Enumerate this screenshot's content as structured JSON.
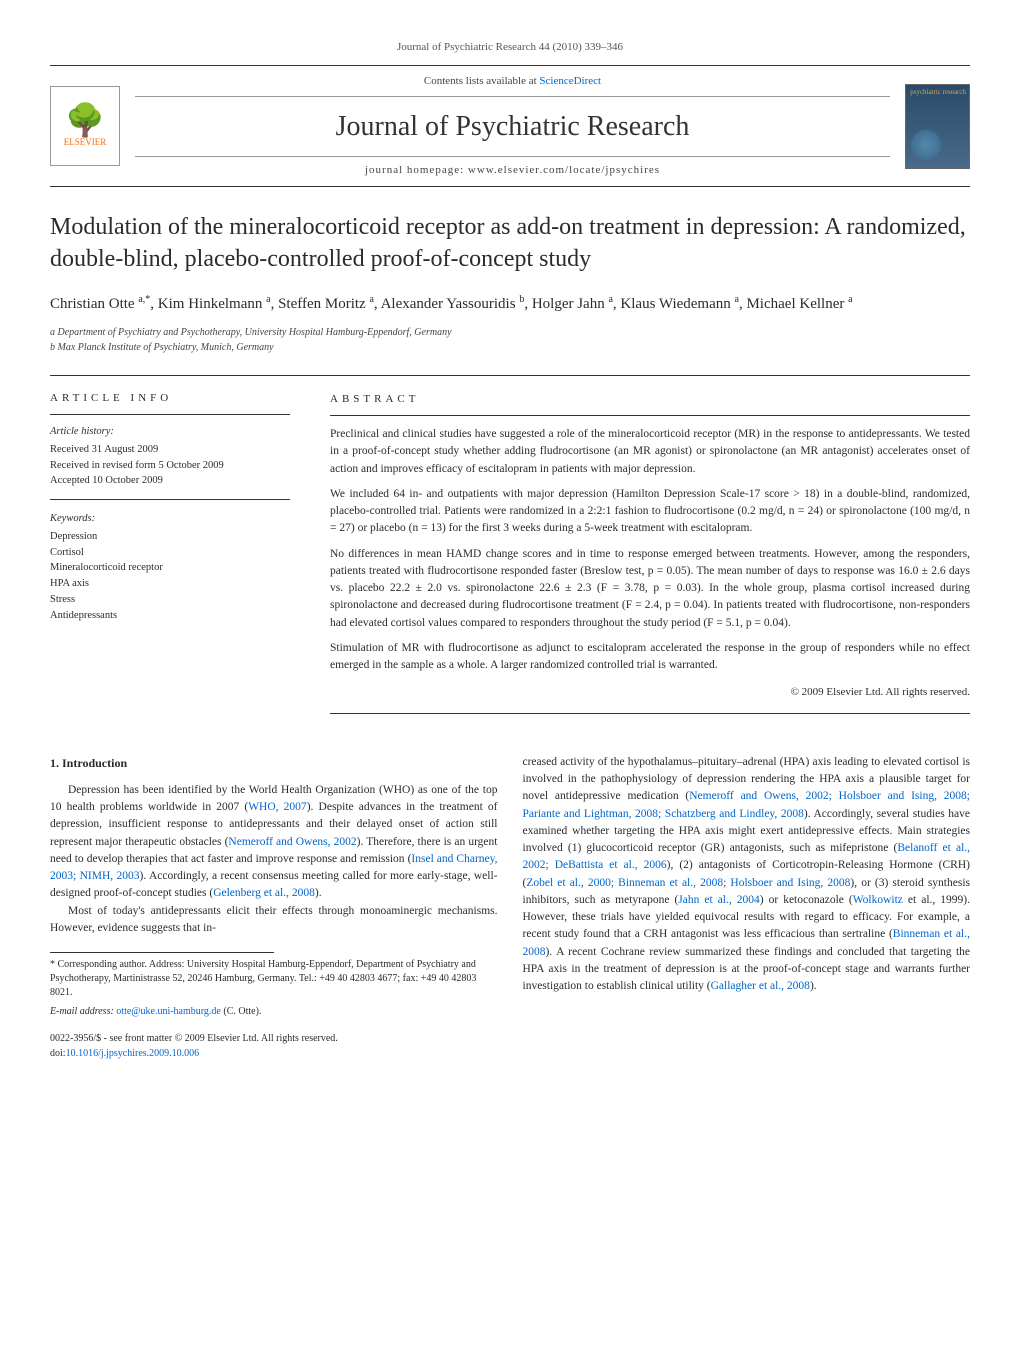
{
  "header": {
    "citation": "Journal of Psychiatric Research 44 (2010) 339–346",
    "sciencedirect_prefix": "Contents lists available at ",
    "sciencedirect_link": "ScienceDirect",
    "journal_name": "Journal of Psychiatric Research",
    "homepage_prefix": "journal homepage: ",
    "homepage_url": "www.elsevier.com/locate/jpsychires",
    "elsevier_label": "ELSEVIER",
    "cover_text": "psychiatric research"
  },
  "title": "Modulation of the mineralocorticoid receptor as add-on treatment in depression: A randomized, double-blind, placebo-controlled proof-of-concept study",
  "authors_line": "Christian Otte a,*, Kim Hinkelmann a, Steffen Moritz a, Alexander Yassouridis b, Holger Jahn a, Klaus Wiedemann a, Michael Kellner a",
  "affiliations": {
    "a": "a Department of Psychiatry and Psychotherapy, University Hospital Hamburg-Eppendorf, Germany",
    "b": "b Max Planck Institute of Psychiatry, Munich, Germany"
  },
  "article_info": {
    "heading": "ARTICLE INFO",
    "history_label": "Article history:",
    "received": "Received 31 August 2009",
    "revised": "Received in revised form 5 October 2009",
    "accepted": "Accepted 10 October 2009",
    "keywords_label": "Keywords:",
    "keywords": [
      "Depression",
      "Cortisol",
      "Mineralocorticoid receptor",
      "HPA axis",
      "Stress",
      "Antidepressants"
    ]
  },
  "abstract": {
    "heading": "ABSTRACT",
    "p1": "Preclinical and clinical studies have suggested a role of the mineralocorticoid receptor (MR) in the response to antidepressants. We tested in a proof-of-concept study whether adding fludrocortisone (an MR agonist) or spironolactone (an MR antagonist) accelerates onset of action and improves efficacy of escitalopram in patients with major depression.",
    "p2": "We included 64 in- and outpatients with major depression (Hamilton Depression Scale-17 score > 18) in a double-blind, randomized, placebo-controlled trial. Patients were randomized in a 2:2:1 fashion to fludrocortisone (0.2 mg/d, n = 24) or spironolactone (100 mg/d, n = 27) or placebo (n = 13) for the first 3 weeks during a 5-week treatment with escitalopram.",
    "p3": "No differences in mean HAMD change scores and in time to response emerged between treatments. However, among the responders, patients treated with fludrocortisone responded faster (Breslow test, p = 0.05). The mean number of days to response was 16.0 ± 2.6 days vs. placebo 22.2 ± 2.0 vs. spironolactone 22.6 ± 2.3 (F = 3.78, p = 0.03). In the whole group, plasma cortisol increased during spironolactone and decreased during fludrocortisone treatment (F = 2.4, p = 0.04). In patients treated with fludrocortisone, non-responders had elevated cortisol values compared to responders throughout the study period (F = 5.1, p = 0.04).",
    "p4": "Stimulation of MR with fludrocortisone as adjunct to escitalopram accelerated the response in the group of responders while no effect emerged in the sample as a whole. A larger randomized controlled trial is warranted.",
    "copyright": "© 2009 Elsevier Ltd. All rights reserved."
  },
  "section1": {
    "heading": "1. Introduction",
    "col1_p1_a": "Depression has been identified by the World Health Organization (WHO) as one of the top 10 health problems worldwide in 2007 (",
    "col1_p1_ref1": "WHO, 2007",
    "col1_p1_b": "). Despite advances in the treatment of depression, insufficient response to antidepressants and their delayed onset of action still represent major therapeutic obstacles (",
    "col1_p1_ref2": "Nemeroff and Owens, 2002",
    "col1_p1_c": "). Therefore, there is an urgent need to develop therapies that act faster and improve response and remission (",
    "col1_p1_ref3": "Insel and Charney, 2003; NIMH, 2003",
    "col1_p1_d": "). Accordingly, a recent consensus meeting called for more early-stage, well-designed proof-of-concept studies (",
    "col1_p1_ref4": "Gelenberg et al., 2008",
    "col1_p1_e": ").",
    "col1_p2": "Most of today's antidepressants elicit their effects through monoaminergic mechanisms. However, evidence suggests that in-",
    "col2_p1_a": "creased activity of the hypothalamus–pituitary–adrenal (HPA) axis leading to elevated cortisol is involved in the pathophysiology of depression rendering the HPA axis a plausible target for novel antidepressive medication (",
    "col2_p1_ref1": "Nemeroff and Owens, 2002; Holsboer and Ising, 2008; Pariante and Lightman, 2008; Schatzberg and Lindley, 2008",
    "col2_p1_b": "). Accordingly, several studies have examined whether targeting the HPA axis might exert antidepressive effects. Main strategies involved (1) glucocorticoid receptor (GR) antagonists, such as mifepristone (",
    "col2_p1_ref2": "Belanoff et al., 2002; DeBattista et al., 2006",
    "col2_p1_c": "), (2) antagonists of Corticotropin-Releasing Hormone (CRH) (",
    "col2_p1_ref3": "Zobel et al., 2000; Binneman et al., 2008; Holsboer and Ising, 2008",
    "col2_p1_d": "), or (3) steroid synthesis inhibitors, such as metyrapone (",
    "col2_p1_ref4": "Jahn et al., 2004",
    "col2_p1_e": ") or ketoconazole (",
    "col2_p1_ref5": "Wolkowitz",
    "col2_p1_f": " et al., 1999). However, these trials have yielded equivocal results with regard to efficacy. For example, a recent study found that a CRH antagonist was less efficacious than sertraline (",
    "col2_p1_ref6": "Binneman et al., 2008",
    "col2_p1_g": "). A recent Cochrane review summarized these findings and concluded that targeting the HPA axis in the treatment of depression is at the proof-of-concept stage and warrants further investigation to establish clinical utility (",
    "col2_p1_ref7": "Gallagher et al., 2008",
    "col2_p1_h": ")."
  },
  "footnote": {
    "corresponding": "* Corresponding author. Address: University Hospital Hamburg-Eppendorf, Department of Psychiatry and Psychotherapy, Martinistrasse 52, 20246 Hamburg, Germany. Tel.: +49 40 42803 4677; fax: +49 40 42803 8021.",
    "email_label": "E-mail address: ",
    "email": "otte@uke.uni-hamburg.de",
    "email_suffix": " (C. Otte)."
  },
  "footer": {
    "issn": "0022-3956/$ - see front matter © 2009 Elsevier Ltd. All rights reserved.",
    "doi_prefix": "doi:",
    "doi": "10.1016/j.jpsychires.2009.10.006"
  }
}
